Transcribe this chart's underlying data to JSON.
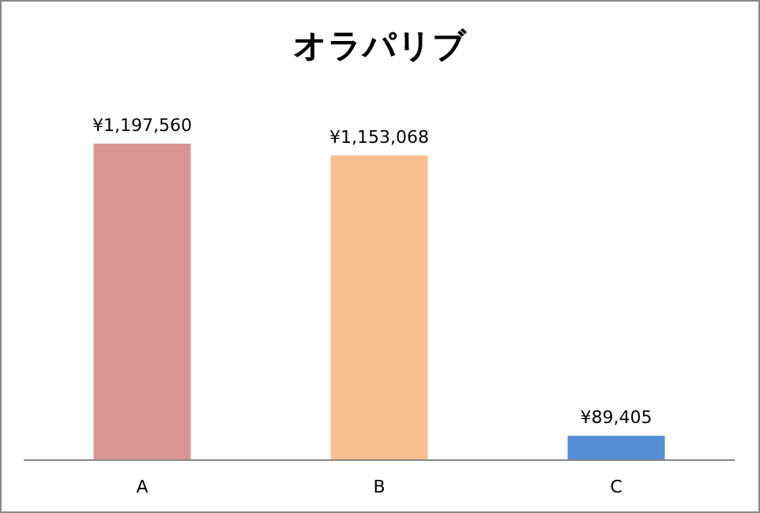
{
  "chart_data": {
    "type": "bar",
    "title": "オラパリブ",
    "categories": [
      "A",
      "B",
      "C"
    ],
    "values": [
      1197560,
      1153068,
      89405
    ],
    "colors": [
      "#d99594",
      "#f9c090",
      "#558ed5"
    ],
    "data_labels": true,
    "value_labels": [
      "¥1,197,560",
      "¥1,153,068",
      "¥89,405"
    ]
  }
}
